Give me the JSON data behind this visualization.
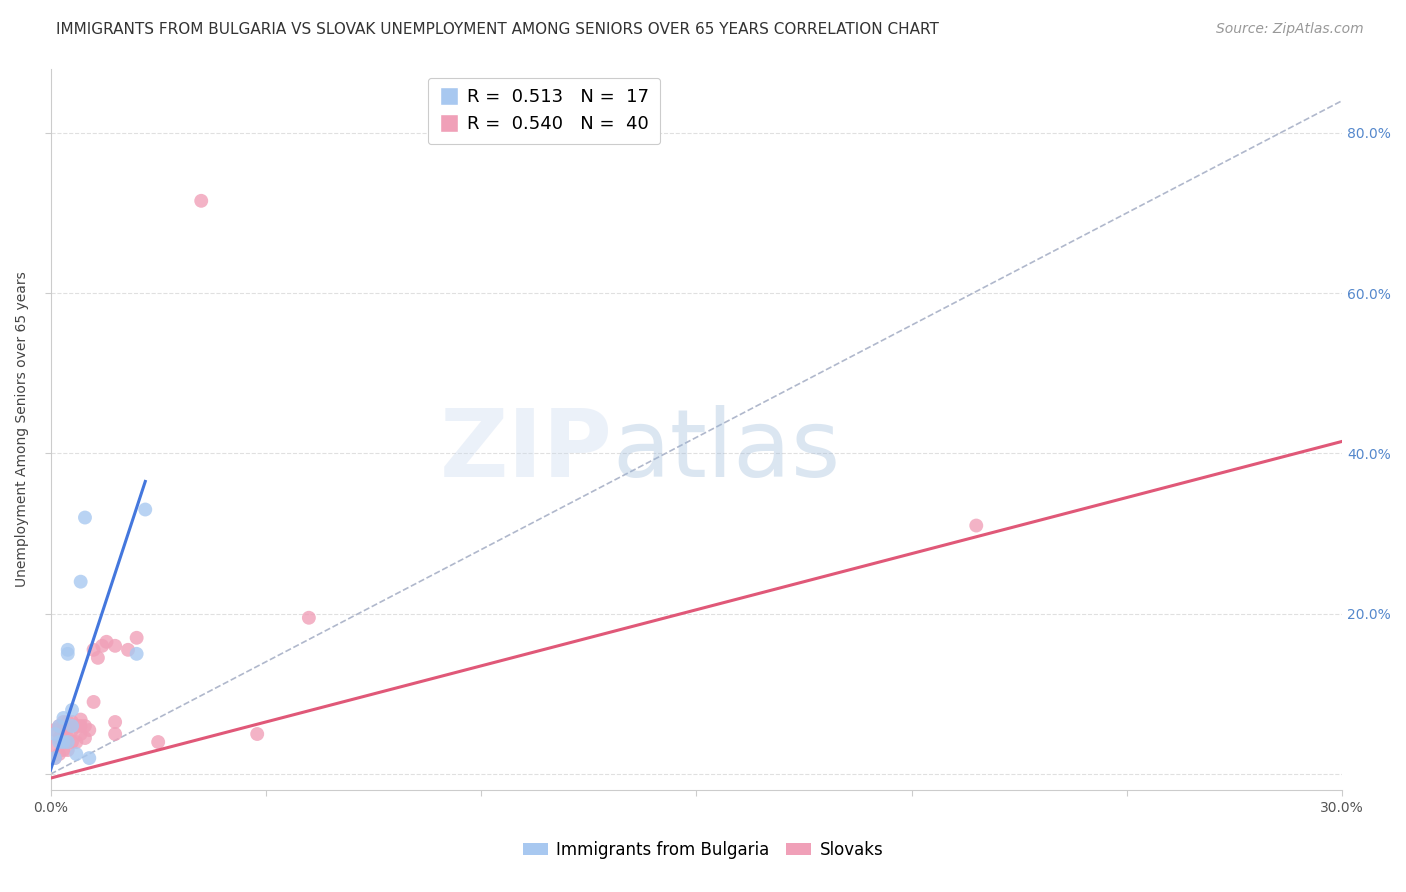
{
  "title": "IMMIGRANTS FROM BULGARIA VS SLOVAK UNEMPLOYMENT AMONG SENIORS OVER 65 YEARS CORRELATION CHART",
  "source": "Source: ZipAtlas.com",
  "ylabel": "Unemployment Among Seniors over 65 years",
  "xlim": [
    0.0,
    0.3
  ],
  "ylim": [
    -0.02,
    0.88
  ],
  "x_ticks": [
    0.0,
    0.05,
    0.1,
    0.15,
    0.2,
    0.25,
    0.3
  ],
  "y_ticks": [
    0.0,
    0.2,
    0.4,
    0.6,
    0.8
  ],
  "background_color": "#ffffff",
  "grid_color": "#e0e0e0",
  "blue_color": "#a8c8f0",
  "pink_color": "#f0a0b8",
  "blue_line_color": "#4477dd",
  "pink_line_color": "#e05878",
  "dashed_line_color": "#b0b8cc",
  "blue_scatter_x": [
    0.001,
    0.001,
    0.002,
    0.002,
    0.003,
    0.003,
    0.004,
    0.004,
    0.004,
    0.005,
    0.005,
    0.006,
    0.007,
    0.008,
    0.009,
    0.02,
    0.022
  ],
  "blue_scatter_y": [
    0.02,
    0.05,
    0.04,
    0.06,
    0.04,
    0.07,
    0.04,
    0.15,
    0.155,
    0.06,
    0.08,
    0.025,
    0.24,
    0.32,
    0.02,
    0.15,
    0.33
  ],
  "pink_scatter_x": [
    0.001,
    0.001,
    0.001,
    0.002,
    0.002,
    0.002,
    0.003,
    0.003,
    0.003,
    0.003,
    0.004,
    0.004,
    0.004,
    0.004,
    0.005,
    0.005,
    0.005,
    0.006,
    0.006,
    0.007,
    0.007,
    0.007,
    0.008,
    0.008,
    0.009,
    0.01,
    0.01,
    0.011,
    0.012,
    0.013,
    0.015,
    0.015,
    0.015,
    0.018,
    0.02,
    0.025,
    0.035,
    0.048,
    0.06,
    0.215
  ],
  "pink_scatter_y": [
    0.02,
    0.035,
    0.055,
    0.025,
    0.045,
    0.06,
    0.03,
    0.04,
    0.055,
    0.065,
    0.03,
    0.045,
    0.058,
    0.065,
    0.04,
    0.055,
    0.065,
    0.04,
    0.06,
    0.05,
    0.06,
    0.068,
    0.045,
    0.06,
    0.055,
    0.09,
    0.155,
    0.145,
    0.16,
    0.165,
    0.05,
    0.065,
    0.16,
    0.155,
    0.17,
    0.04,
    0.715,
    0.05,
    0.195,
    0.31
  ],
  "blue_line_x": [
    0.0,
    0.022
  ],
  "blue_line_y": [
    0.005,
    0.365
  ],
  "pink_line_x": [
    0.0,
    0.3
  ],
  "pink_line_y": [
    -0.005,
    0.415
  ],
  "dashed_line_x": [
    0.0,
    0.3
  ],
  "dashed_line_y": [
    0.0,
    0.84
  ],
  "title_fontsize": 11,
  "axis_label_fontsize": 10,
  "tick_fontsize": 10,
  "legend_fontsize": 12,
  "source_fontsize": 10
}
